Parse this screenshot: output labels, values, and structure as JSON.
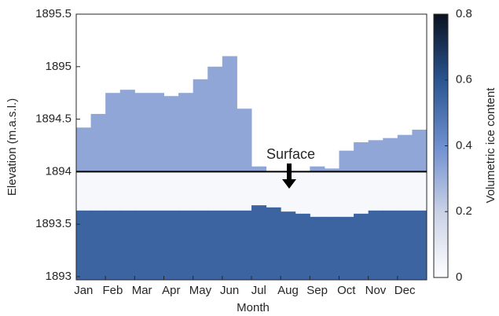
{
  "chart_data": {
    "type": "profile",
    "xlabel": "Month",
    "ylabel": "Elevation (m.a.s.l.)",
    "categories": [
      "Jan",
      null,
      "Feb",
      null,
      "Mar",
      null,
      "Apr",
      null,
      "May",
      null,
      "Jun",
      null,
      "Jul",
      null,
      "Aug",
      null,
      "Sep",
      null,
      "Oct",
      null,
      "Nov",
      null,
      "Dec",
      null
    ],
    "series": [
      {
        "ice_content": 0.33,
        "values": [
          1894.42,
          1894.55,
          1894.75,
          1894.78,
          1894.75,
          1894.75,
          1894.72,
          1894.75,
          1894.88,
          1895.0,
          1895.1,
          1894.6,
          1894.05,
          1894.0,
          1894.0,
          1894.0,
          1894.05,
          1894.03,
          1894.2,
          1894.28,
          1894.3,
          1894.32,
          1894.35,
          1894.4
        ]
      },
      {
        "ice_content": 0.03,
        "values": [
          1894,
          1894,
          1894,
          1894,
          1894,
          1894,
          1894,
          1894,
          1894,
          1894,
          1894,
          1894,
          1894,
          1894,
          1894,
          1894,
          1894,
          1894,
          1894,
          1894,
          1894,
          1894,
          1894,
          1894
        ]
      },
      {
        "ice_content": 0.55,
        "values": [
          1893.63,
          1893.63,
          1893.63,
          1893.63,
          1893.63,
          1893.63,
          1893.63,
          1893.63,
          1893.63,
          1893.63,
          1893.63,
          1893.63,
          1893.68,
          1893.66,
          1893.62,
          1893.6,
          1893.57,
          1893.57,
          1893.57,
          1893.6,
          1893.63,
          1893.63,
          1893.63,
          1893.63
        ]
      }
    ],
    "ylim": [
      1892.97,
      1895.5
    ],
    "yticks": [
      1893,
      1893.5,
      1894,
      1894.5,
      1895,
      1895.5
    ],
    "annotation": {
      "text": "Surface",
      "elevation": 1894
    },
    "colorbar": {
      "label": "Volumetric ice content",
      "clim": [
        0,
        0.8
      ],
      "ticks": [
        0,
        0.2,
        0.4,
        0.6,
        0.8
      ],
      "colormap": [
        "#ffffff",
        "#c9d1e6",
        "#6f8fcf",
        "#2a5590",
        "#0b1220"
      ]
    }
  }
}
